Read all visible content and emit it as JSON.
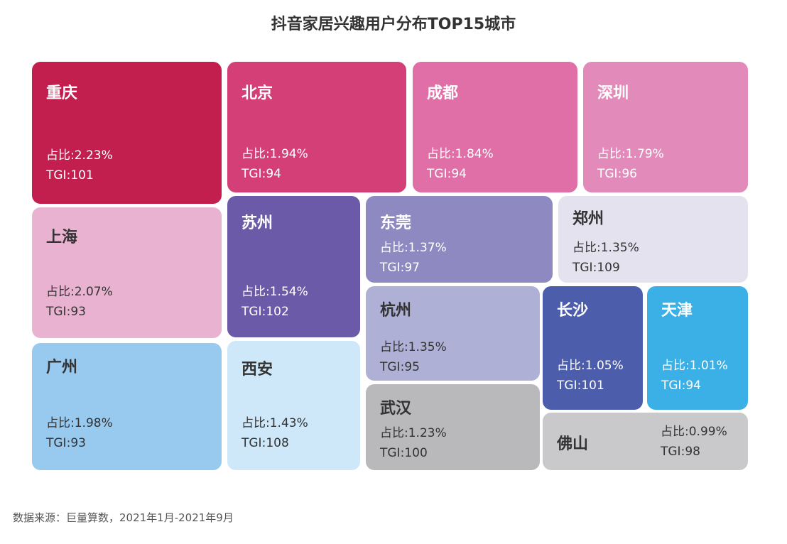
{
  "chart_data": {
    "type": "treemap",
    "title": "抖音家居兴趣用户分布TOP15城市",
    "share_label": "占比:",
    "tgi_label": "TGI:",
    "items": [
      {
        "city": "重庆",
        "share": "2.23%",
        "tgi": 101,
        "color": "#c21e4e"
      },
      {
        "city": "北京",
        "share": "1.94%",
        "tgi": 94,
        "color": "#d43f78"
      },
      {
        "city": "成都",
        "share": "1.84%",
        "tgi": 94,
        "color": "#df6fa6"
      },
      {
        "city": "深圳",
        "share": "1.79%",
        "tgi": 96,
        "color": "#e28bbb"
      },
      {
        "city": "上海",
        "share": "2.07%",
        "tgi": 93,
        "color": "#e9b2d0"
      },
      {
        "city": "苏州",
        "share": "1.54%",
        "tgi": 102,
        "color": "#6b5aa8"
      },
      {
        "city": "东莞",
        "share": "1.37%",
        "tgi": 97,
        "color": "#8f89c2"
      },
      {
        "city": "郑州",
        "share": "1.35%",
        "tgi": 109,
        "color": "#e4e2ef"
      },
      {
        "city": "杭州",
        "share": "1.35%",
        "tgi": 95,
        "color": "#afb0d6"
      },
      {
        "city": "长沙",
        "share": "1.05%",
        "tgi": 101,
        "color": "#4b5dab"
      },
      {
        "city": "天津",
        "share": "1.01%",
        "tgi": 94,
        "color": "#3bb0e6"
      },
      {
        "city": "广州",
        "share": "1.98%",
        "tgi": 93,
        "color": "#98c9ef"
      },
      {
        "city": "西安",
        "share": "1.43%",
        "tgi": 108,
        "color": "#cfe8f9"
      },
      {
        "city": "武汉",
        "share": "1.23%",
        "tgi": 100,
        "color": "#b9b9bb"
      },
      {
        "city": "佛山",
        "share": "0.99%",
        "tgi": 98,
        "color": "#c9c9cb"
      }
    ]
  },
  "source": "数据来源：巨量算数，2021年1月-2021年9月"
}
